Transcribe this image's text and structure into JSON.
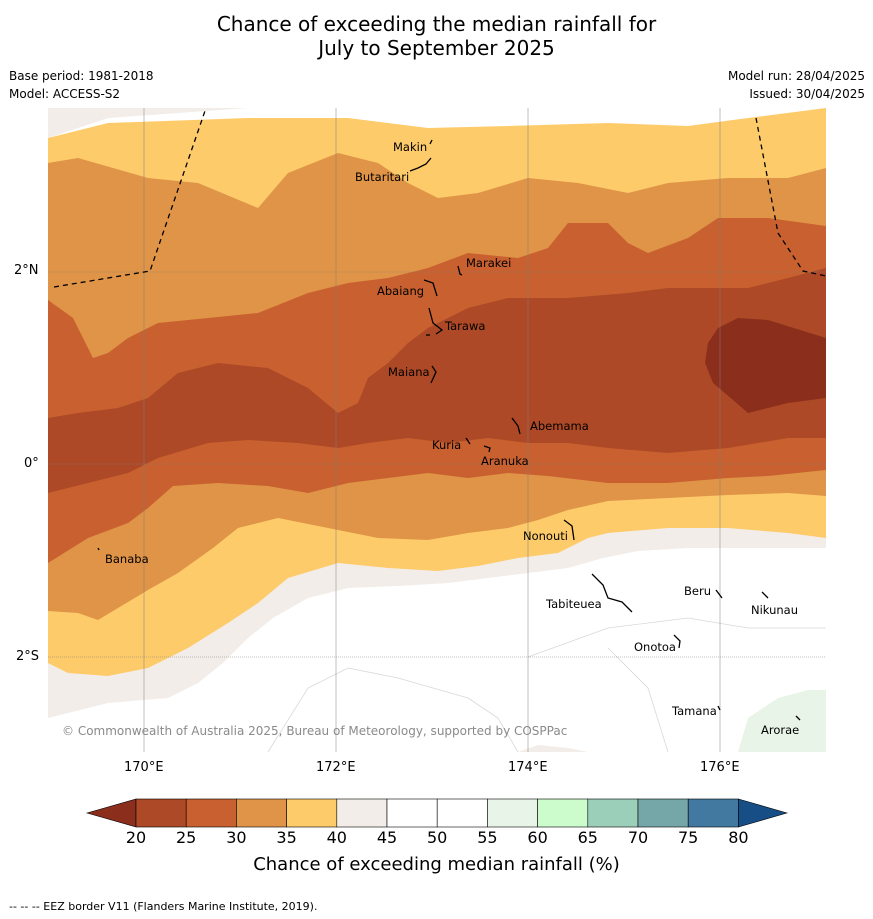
{
  "title_line1": "Chance of exceeding the median rainfall for",
  "title_line2": "July to September 2025",
  "base_period": "Base period: 1981-2018",
  "model": "Model: ACCESS-S2",
  "model_run": "Model run: 28/04/2025",
  "issued": "Issued: 30/04/2025",
  "lat_labels": [
    "2°N",
    "0°",
    "2°S"
  ],
  "lon_labels": [
    "170°E",
    "172°E",
    "174°E",
    "176°E"
  ],
  "places": [
    "Makin",
    "Butaritari",
    "Marakei",
    "Abaiang",
    "Tarawa",
    "Maiana",
    "Abemama",
    "Kuria",
    "Aranuka",
    "Nonouti",
    "Banaba",
    "Tabiteuea",
    "Beru",
    "Nikunau",
    "Onotoa",
    "Tamana",
    "Arorae"
  ],
  "copyright": "© Commonwealth of Australia 2025, Bureau of Meteorology, supported by COSPPac",
  "colorbar": {
    "ticks": [
      "20",
      "25",
      "30",
      "35",
      "40",
      "45",
      "50",
      "55",
      "60",
      "65",
      "70",
      "75",
      "80"
    ],
    "colors": [
      "#ad4926",
      "#c8602f",
      "#e09447",
      "#fdcb6a",
      "#f2ede8",
      "#ffffff",
      "#ffffff",
      "#e9f4e8",
      "#ccfccc",
      "#9ccfb9",
      "#75a7a8",
      "#4279a0"
    ],
    "under_color": "#8b2e1c",
    "over_color": "#184e86",
    "title": "Chance of exceeding median rainfall (%)"
  },
  "footer": "--  --  -- EEZ border V11 (Flanders Marine Institute, 2019)."
}
